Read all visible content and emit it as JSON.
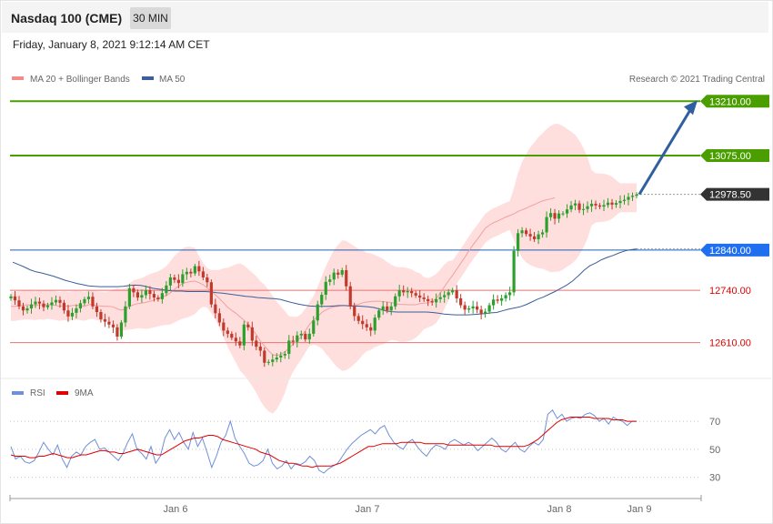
{
  "header": {
    "title": "Nasdaq 100 (CME)",
    "timeframe": "30 MIN",
    "datetime": "Friday, January 8, 2021 9:12:14 AM CET"
  },
  "legend": {
    "ma20_label": "MA 20 + Bollinger Bands",
    "ma50_label": "MA 50",
    "copyright": "Research © 2021 Trading Central",
    "rsi_label": "RSI",
    "rsi_ma_label": "9MA"
  },
  "colors": {
    "up_candle": "#2ca02c",
    "down_candle": "#c0392b",
    "bollinger_fill": "#ffdede",
    "ma20": "#f2a0a0",
    "ma50": "#3a5f9a",
    "resistance": "#4a9e00",
    "support": "#e57373",
    "pivot": "#1f5fb0",
    "current": "#333333",
    "arrow": "#2f5f9f",
    "rsi": "#6f8fd6",
    "rsi_ma": "#e00000"
  },
  "chart_data": [
    {
      "type": "candlestick",
      "interval": "30 min",
      "ylim": [
        12530,
        13240
      ],
      "x_ticks": [
        "Jan 6",
        "Jan 7",
        "Jan 8",
        "Jan 9"
      ],
      "levels": [
        {
          "value": 13210.0,
          "label": "13210.00",
          "kind": "resistance"
        },
        {
          "value": 13075.0,
          "label": "13075.00",
          "kind": "resistance"
        },
        {
          "value": 12978.5,
          "label": "12978.50",
          "kind": "current"
        },
        {
          "value": 12840.0,
          "label": "12840.00",
          "kind": "pivot"
        },
        {
          "value": 12740.0,
          "label": "12740.00",
          "kind": "support"
        },
        {
          "value": 12610.0,
          "label": "12610.00",
          "kind": "support"
        }
      ],
      "close": [
        12725,
        12715,
        12700,
        12690,
        12695,
        12705,
        12712,
        12707,
        12698,
        12703,
        12710,
        12716,
        12709,
        12690,
        12675,
        12684,
        12695,
        12708,
        12718,
        12724,
        12700,
        12686,
        12668,
        12662,
        12655,
        12648,
        12625,
        12660,
        12700,
        12745,
        12735,
        12722,
        12728,
        12740,
        12731,
        12722,
        12718,
        12733,
        12752,
        12772,
        12766,
        12758,
        12780,
        12786,
        12782,
        12800,
        12787,
        12772,
        12760,
        12705,
        12683,
        12660,
        12640,
        12632,
        12622,
        12613,
        12603,
        12655,
        12648,
        12615,
        12600,
        12590,
        12560,
        12562,
        12568,
        12573,
        12578,
        12582,
        12615,
        12612,
        12628,
        12632,
        12618,
        12632,
        12665,
        12705,
        12729,
        12761,
        12767,
        12784,
        12779,
        12790,
        12750,
        12700,
        12676,
        12664,
        12656,
        12648,
        12640,
        12672,
        12690,
        12700,
        12690,
        12700,
        12725,
        12740,
        12735,
        12738,
        12733,
        12727,
        12722,
        12718,
        12713,
        12710,
        12718,
        12723,
        12728,
        12735,
        12740,
        12720,
        12703,
        12692,
        12695,
        12700,
        12692,
        12682,
        12687,
        12703,
        12717,
        12714,
        12720,
        12728,
        12735,
        12838,
        12882,
        12889,
        12880,
        12874,
        12867,
        12879,
        12884,
        12922,
        12932,
        12918,
        12931,
        12931,
        12941,
        12951,
        12956,
        12940,
        12942,
        12949,
        12955,
        12951,
        12948,
        12952,
        12958,
        12953,
        12957,
        12962,
        12965,
        12972,
        12975,
        12978
      ],
      "ma20": [
        12700,
        12700,
        12702,
        12703,
        12704,
        12703,
        12702,
        12704,
        12703,
        12705,
        12704,
        12702,
        12700,
        12702,
        12700,
        12702,
        12703,
        12702,
        12700,
        12704,
        12705,
        12702,
        12701,
        12700,
        12700,
        12699,
        12694,
        12691,
        12693,
        12700,
        12704,
        12707,
        12708,
        12710,
        12713,
        12716,
        12719,
        12723,
        12727,
        12734,
        12743,
        12750,
        12757,
        12760,
        12762,
        12763,
        12759,
        12754,
        12746,
        12737,
        12729,
        12719,
        12709,
        12698,
        12690,
        12683,
        12674,
        12666,
        12655,
        12643,
        12630,
        12614,
        12602,
        12590,
        12580,
        12578,
        12581,
        12587,
        12596,
        12606,
        12614,
        12625,
        12640,
        12655,
        12666,
        12675,
        12685,
        12691,
        12696,
        12699,
        12700,
        12702,
        12702,
        12702,
        12703,
        12705,
        12709,
        12711,
        12712,
        12713,
        12713,
        12712,
        12711,
        12710,
        12707,
        12705,
        12705,
        12704,
        12704,
        12704,
        12707,
        12708,
        12709,
        12713,
        12720,
        12733,
        12749,
        12764,
        12777,
        12792,
        12807,
        12822,
        12838,
        12853,
        12866,
        12880,
        12894,
        12902,
        12908,
        12912,
        12917,
        12922,
        12926,
        12930,
        12936,
        12940,
        12944,
        12949,
        12953,
        12958,
        12962,
        12965,
        12967,
        12970
      ],
      "ma50": [
        12810,
        12804,
        12798,
        12791,
        12786,
        12783,
        12779,
        12775,
        12770,
        12765,
        12761,
        12757,
        12754,
        12751,
        12750,
        12749,
        12749,
        12749,
        12749,
        12750,
        12752,
        12753,
        12752,
        12749,
        12745,
        12743,
        12741,
        12739,
        12738,
        12738,
        12737,
        12737,
        12737,
        12737,
        12736,
        12734,
        12733,
        12731,
        12729,
        12727,
        12725,
        12724,
        12722,
        12721,
        12720,
        12719,
        12717,
        12713,
        12709,
        12706,
        12703,
        12701,
        12700,
        12700,
        12700,
        12701,
        12702,
        12702,
        12701,
        12701,
        12700,
        12699,
        12697,
        12693,
        12689,
        12687,
        12686,
        12686,
        12686,
        12686,
        12686,
        12686,
        12685,
        12683,
        12681,
        12680,
        12679,
        12679,
        12679,
        12680,
        12681,
        12682,
        12684,
        12685,
        12689,
        12693,
        12696,
        12699,
        12704,
        12711,
        12718,
        12723,
        12730,
        12737,
        12745,
        12753,
        12763,
        12776,
        12790,
        12801,
        12808,
        12816,
        12822,
        12827,
        12833,
        12838,
        12841,
        12843
      ]
    },
    {
      "type": "line",
      "name": "RSI",
      "ylim": [
        20,
        85
      ],
      "y_ticks": [
        70,
        50,
        30
      ],
      "rsi": [
        52,
        43,
        45,
        41,
        40,
        42,
        48,
        55,
        50,
        46,
        53,
        43,
        37,
        45,
        48,
        46,
        52,
        55,
        57,
        50,
        51,
        48,
        45,
        42,
        47,
        55,
        61,
        50,
        47,
        43,
        52,
        40,
        45,
        58,
        64,
        57,
        62,
        55,
        50,
        62,
        52,
        58,
        48,
        37,
        45,
        55,
        60,
        70,
        58,
        52,
        47,
        40,
        38,
        39,
        42,
        50,
        40,
        36,
        38,
        42,
        36,
        40,
        39,
        41,
        45,
        42,
        35,
        33,
        36,
        38,
        40,
        45,
        50,
        54,
        57,
        60,
        62,
        64,
        61,
        65,
        67,
        60,
        55,
        52,
        50,
        55,
        57,
        52,
        48,
        45,
        50,
        53,
        52,
        50,
        55,
        57,
        55,
        53,
        55,
        53,
        49,
        52,
        55,
        58,
        55,
        50,
        48,
        52,
        55,
        50,
        48,
        52,
        55,
        53,
        57,
        75,
        78,
        72,
        75,
        70,
        72,
        73,
        72,
        75,
        76,
        74,
        70,
        72,
        68,
        73,
        71,
        70,
        67,
        70,
        70
      ],
      "rsi_ma": [
        46,
        45,
        45,
        45,
        44,
        44,
        45,
        45,
        46,
        47,
        46,
        45,
        44,
        44,
        45,
        46,
        46,
        47,
        48,
        49,
        49,
        48,
        48,
        47,
        47,
        48,
        49,
        50,
        49,
        48,
        47,
        46,
        46,
        48,
        50,
        52,
        54,
        56,
        57,
        58,
        58,
        59,
        60,
        60,
        59,
        57,
        56,
        55,
        54,
        53,
        52,
        51,
        50,
        48,
        47,
        46,
        44,
        42,
        41,
        40,
        40,
        39,
        38,
        38,
        37,
        38,
        38,
        38,
        38,
        39,
        40,
        42,
        44,
        46,
        48,
        50,
        52,
        52,
        53,
        54,
        54,
        54,
        54,
        55,
        55,
        55,
        55,
        55,
        54,
        54,
        54,
        54,
        54,
        53,
        53,
        53,
        53,
        53,
        53,
        53,
        53,
        53,
        53,
        52,
        52,
        52,
        52,
        52,
        52,
        52,
        53,
        55,
        57,
        60,
        63,
        66,
        69,
        71,
        72,
        73,
        73,
        73,
        73,
        73,
        72,
        72,
        72,
        72,
        71,
        71,
        71,
        70,
        70,
        70
      ]
    }
  ]
}
